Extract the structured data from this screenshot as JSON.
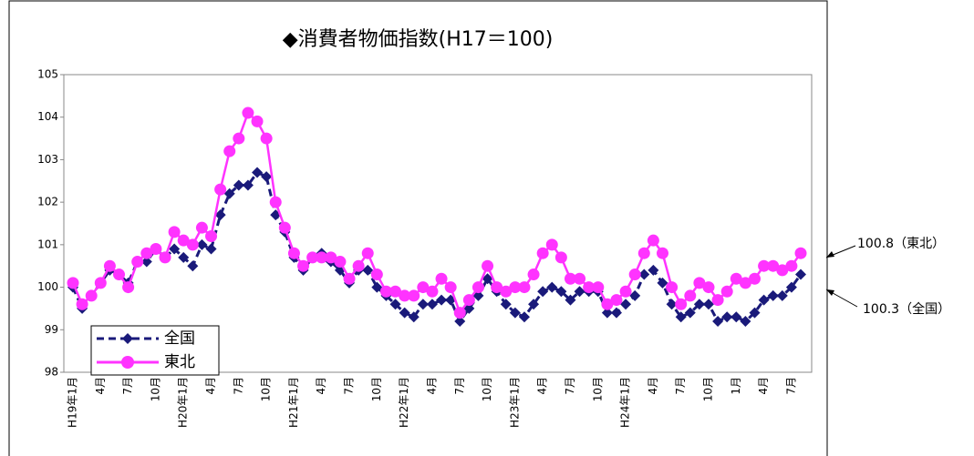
{
  "chart_data": {
    "type": "line",
    "title": "◆消費者物価指数(H17＝100)",
    "categories": [
      "H19年1月",
      null,
      null,
      "4月",
      null,
      null,
      "7月",
      null,
      null,
      "10月",
      null,
      null,
      "H20年1月",
      null,
      null,
      "4月",
      null,
      null,
      "7月",
      null,
      null,
      "10月",
      null,
      null,
      "H21年1月",
      null,
      null,
      "4月",
      null,
      null,
      "7月",
      null,
      null,
      "10月",
      null,
      null,
      "H22年1月",
      null,
      null,
      "4月",
      null,
      null,
      "7月",
      null,
      null,
      "10月",
      null,
      null,
      "H23年1月",
      null,
      null,
      "4月",
      null,
      null,
      "7月",
      null,
      null,
      "10月",
      null,
      null,
      "H24年1月",
      null,
      null,
      "4月",
      null,
      null,
      "7月",
      null,
      null,
      "10月",
      null,
      null,
      "1月",
      null,
      null,
      "4月",
      null,
      null,
      "7月",
      null
    ],
    "series": [
      {
        "name": "全国",
        "color": "#1a1a7a",
        "marker": "diamond",
        "line_style": "dashed",
        "values": [
          100.0,
          99.5,
          99.8,
          100.1,
          100.4,
          100.3,
          100.1,
          100.6,
          100.6,
          100.9,
          100.7,
          100.9,
          100.7,
          100.5,
          101.0,
          100.9,
          101.7,
          102.2,
          102.4,
          102.4,
          102.7,
          102.6,
          101.7,
          101.3,
          100.7,
          100.4,
          100.7,
          100.8,
          100.6,
          100.4,
          100.1,
          100.4,
          100.4,
          100.0,
          99.8,
          99.6,
          99.4,
          99.3,
          99.6,
          99.6,
          99.7,
          99.7,
          99.2,
          99.5,
          99.8,
          100.2,
          99.9,
          99.6,
          99.4,
          99.3,
          99.6,
          99.9,
          100.0,
          99.9,
          99.7,
          99.9,
          99.9,
          99.9,
          99.4,
          99.4,
          99.6,
          99.8,
          100.3,
          100.4,
          100.1,
          99.6,
          99.3,
          99.4,
          99.6,
          99.6,
          99.2,
          99.3,
          99.3,
          99.2,
          99.4,
          99.7,
          99.8,
          99.8,
          100.0,
          100.3
        ]
      },
      {
        "name": "東北",
        "color": "#ff33ff",
        "marker": "circle",
        "line_style": "solid",
        "values": [
          100.1,
          99.6,
          99.8,
          100.1,
          100.5,
          100.3,
          100.0,
          100.6,
          100.8,
          100.9,
          100.7,
          101.3,
          101.1,
          101.0,
          101.4,
          101.2,
          102.3,
          103.2,
          103.5,
          104.1,
          103.9,
          103.5,
          102.0,
          101.4,
          100.8,
          100.5,
          100.7,
          100.7,
          100.7,
          100.6,
          100.2,
          100.5,
          100.8,
          100.3,
          99.9,
          99.9,
          99.8,
          99.8,
          100.0,
          99.9,
          100.2,
          100.0,
          99.4,
          99.7,
          100.0,
          100.5,
          100.0,
          99.9,
          100.0,
          100.0,
          100.3,
          100.8,
          101.0,
          100.7,
          100.2,
          100.2,
          100.0,
          100.0,
          99.6,
          99.7,
          99.9,
          100.3,
          100.8,
          101.1,
          100.8,
          100.0,
          99.6,
          99.8,
          100.1,
          100.0,
          99.7,
          99.9,
          100.2,
          100.1,
          100.2,
          100.5,
          100.5,
          100.4,
          100.5,
          100.8
        ]
      }
    ],
    "ylim": [
      98,
      105
    ],
    "yticks": [
      98,
      99,
      100,
      101,
      102,
      103,
      104,
      105
    ],
    "grid": false,
    "legend": "lower left",
    "annotations": [
      "100.8（東北）",
      "100.3（全国）"
    ]
  }
}
